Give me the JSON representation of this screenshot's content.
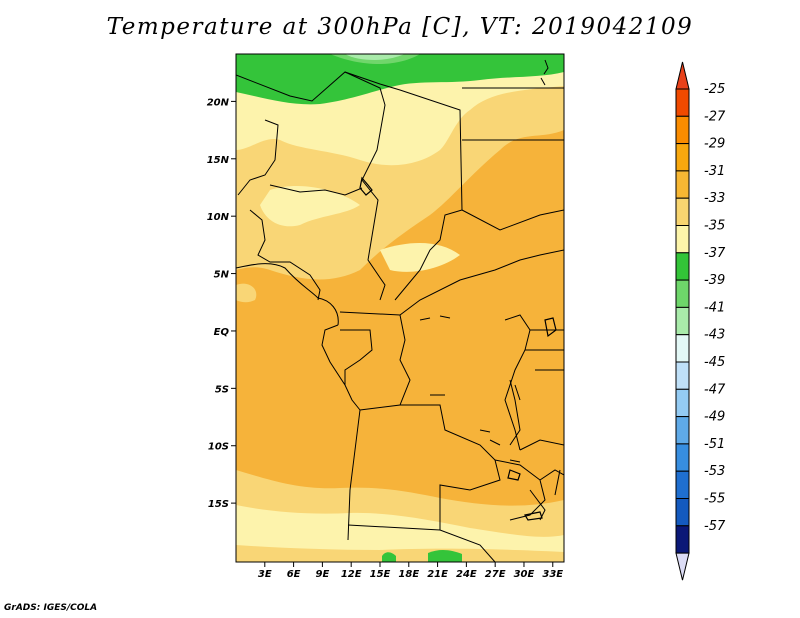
{
  "title": "Temperature at 300hPa [C], VT: 2019042109",
  "credit": "GrADS: IGES/COLA",
  "map": {
    "lat_labels": [
      {
        "lat": 20,
        "label": "20N"
      },
      {
        "lat": 15,
        "label": "15N"
      },
      {
        "lat": 10,
        "label": "10N"
      },
      {
        "lat": 5,
        "label": "5N"
      },
      {
        "lat": 0,
        "label": "EQ"
      },
      {
        "lat": -5,
        "label": "5S"
      },
      {
        "lat": -10,
        "label": "10S"
      },
      {
        "lat": -15,
        "label": "15S"
      }
    ],
    "lon_labels": [
      {
        "lon": 3,
        "label": "3E"
      },
      {
        "lon": 6,
        "label": "6E"
      },
      {
        "lon": 9,
        "label": "9E"
      },
      {
        "lon": 12,
        "label": "12E"
      },
      {
        "lon": 15,
        "label": "15E"
      },
      {
        "lon": 18,
        "label": "18E"
      },
      {
        "lon": 21,
        "label": "21E"
      },
      {
        "lon": 24,
        "label": "24E"
      },
      {
        "lon": 27,
        "label": "27E"
      },
      {
        "lon": 30,
        "label": "30E"
      },
      {
        "lon": 33,
        "label": "33E"
      }
    ]
  },
  "colorbar": {
    "labels": [
      "-25",
      "-27",
      "-29",
      "-31",
      "-33",
      "-35",
      "-37",
      "-39",
      "-41",
      "-43",
      "-45",
      "-47",
      "-49",
      "-51",
      "-53",
      "-55",
      "-57"
    ],
    "colors": [
      "#f04a00",
      "#fa8c00",
      "#f8a80e",
      "#f7b733",
      "#f8d570",
      "#fdf5aa",
      "#33c438",
      "#6ed66a",
      "#a9ebaa",
      "#e3f8f6",
      "#bfe0f8",
      "#94cbf3",
      "#5faae8",
      "#378ee0",
      "#1f6fd0",
      "#145abf",
      "#0b1877"
    ],
    "top_arrow_color": "#e8411a",
    "bottom_arrow_color": "#dcdcf5"
  },
  "palette": {
    "land_base": "#f6b33a",
    "band_light": "#fdf3ac",
    "band_pale": "#f9d676",
    "band_green": "#34c43a",
    "band_lightgreen": "#70d66b"
  }
}
